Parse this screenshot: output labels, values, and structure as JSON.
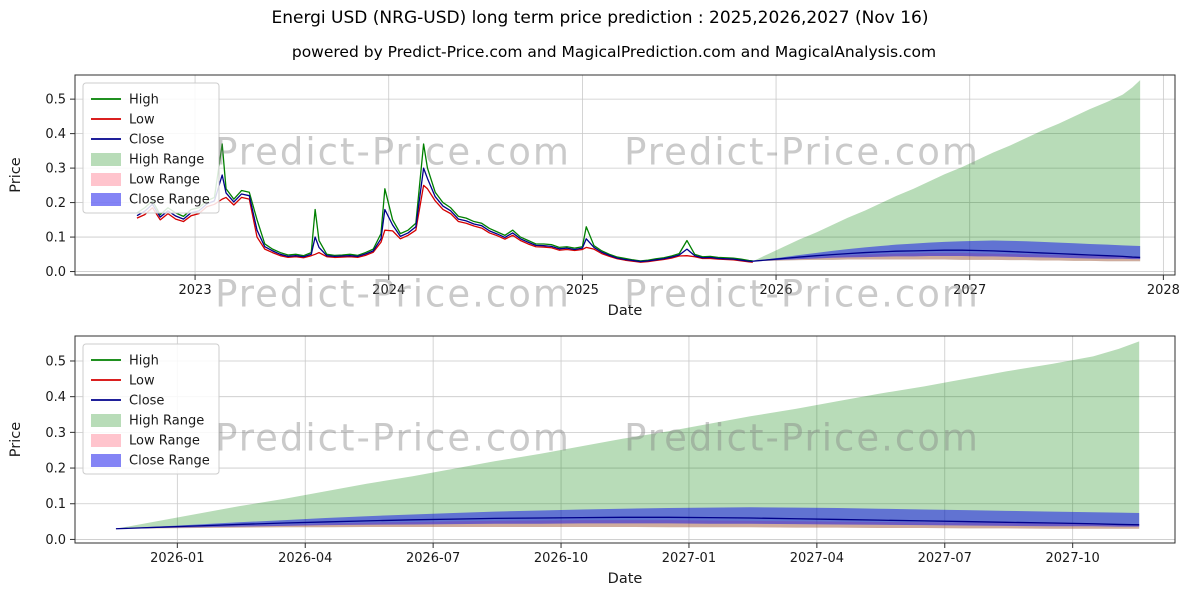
{
  "title": "Energi USD (NRG-USD) long term price prediction : 2025,2026,2027 (Nov 16)",
  "subtitle": "powered by Predict-Price.com and MagicalPrediction.com and MagicalAnalysis.com",
  "watermark": {
    "text": "Predict-Price.com"
  },
  "colors": {
    "high": "#008000",
    "low": "#d40000",
    "close": "#00008b",
    "high_range_fill": "rgba(0,128,0,0.28)",
    "low_range_fill": "rgba(255,70,100,0.32)",
    "close_range_fill": "rgba(10,10,235,0.5)",
    "grid": "#c9c9c9",
    "spine": "#2f2f2f",
    "text": "#1a1a1a"
  },
  "legend": {
    "entries": [
      {
        "label": "High",
        "swatch": "line",
        "color": "colors.high"
      },
      {
        "label": "Low",
        "swatch": "line",
        "color": "colors.low"
      },
      {
        "label": "Close",
        "swatch": "line",
        "color": "colors.close"
      },
      {
        "label": "High Range",
        "swatch": "patch",
        "color": "colors.high_range_fill"
      },
      {
        "label": "Low Range",
        "swatch": "patch",
        "color": "colors.low_range_fill"
      },
      {
        "label": "Close Range",
        "swatch": "patch",
        "color": "colors.close_range_fill"
      }
    ]
  },
  "chart_data": [
    {
      "type": "line",
      "title": "",
      "xlabel": "Date",
      "ylabel": "Price",
      "xlim": [
        2022.38,
        2028.06
      ],
      "ylim": [
        -0.01,
        0.57
      ],
      "grid": true,
      "legend_position": "upper-left",
      "xticks": {
        "values": [
          2023,
          2024,
          2025,
          2026,
          2027,
          2028
        ],
        "labels": [
          "2023",
          "2024",
          "2025",
          "2026",
          "2027",
          "2028"
        ]
      },
      "yticks": [
        0.0,
        0.1,
        0.2,
        0.3,
        0.4,
        0.5
      ],
      "history": {
        "x": [
          2022.7,
          2022.74,
          2022.78,
          2022.82,
          2022.86,
          2022.9,
          2022.94,
          2022.98,
          2023.02,
          2023.06,
          2023.1,
          2023.14,
          2023.16,
          2023.2,
          2023.24,
          2023.28,
          2023.32,
          2023.36,
          2023.4,
          2023.44,
          2023.48,
          2023.52,
          2023.56,
          2023.6,
          2023.62,
          2023.64,
          2023.68,
          2023.72,
          2023.76,
          2023.8,
          2023.84,
          2023.88,
          2023.92,
          2023.96,
          2023.98,
          2024.02,
          2024.06,
          2024.1,
          2024.14,
          2024.18,
          2024.2,
          2024.24,
          2024.28,
          2024.32,
          2024.36,
          2024.4,
          2024.44,
          2024.48,
          2024.52,
          2024.56,
          2024.6,
          2024.64,
          2024.68,
          2024.72,
          2024.76,
          2024.8,
          2024.84,
          2024.88,
          2024.92,
          2024.96,
          2025.0,
          2025.02,
          2025.06,
          2025.1,
          2025.14,
          2025.18,
          2025.22,
          2025.26,
          2025.3,
          2025.34,
          2025.38,
          2025.42,
          2025.46,
          2025.5,
          2025.54,
          2025.58,
          2025.62,
          2025.66,
          2025.7,
          2025.74,
          2025.78,
          2025.82,
          2025.86,
          2025.88
        ],
        "high": [
          0.17,
          0.185,
          0.205,
          0.165,
          0.185,
          0.17,
          0.16,
          0.18,
          0.185,
          0.205,
          0.215,
          0.37,
          0.24,
          0.21,
          0.235,
          0.23,
          0.15,
          0.08,
          0.065,
          0.055,
          0.048,
          0.05,
          0.046,
          0.055,
          0.18,
          0.09,
          0.05,
          0.047,
          0.048,
          0.05,
          0.047,
          0.055,
          0.065,
          0.11,
          0.24,
          0.15,
          0.11,
          0.12,
          0.14,
          0.37,
          0.3,
          0.23,
          0.2,
          0.185,
          0.16,
          0.155,
          0.145,
          0.14,
          0.125,
          0.115,
          0.105,
          0.12,
          0.1,
          0.09,
          0.08,
          0.08,
          0.078,
          0.07,
          0.072,
          0.068,
          0.072,
          0.13,
          0.075,
          0.06,
          0.05,
          0.042,
          0.038,
          0.034,
          0.031,
          0.033,
          0.037,
          0.04,
          0.045,
          0.052,
          0.09,
          0.05,
          0.043,
          0.044,
          0.041,
          0.04,
          0.039,
          0.036,
          0.032,
          0.031
        ],
        "low": [
          0.155,
          0.165,
          0.185,
          0.15,
          0.168,
          0.152,
          0.145,
          0.162,
          0.168,
          0.188,
          0.195,
          0.21,
          0.215,
          0.193,
          0.215,
          0.21,
          0.1,
          0.065,
          0.055,
          0.046,
          0.041,
          0.043,
          0.04,
          0.046,
          0.05,
          0.055,
          0.043,
          0.041,
          0.042,
          0.043,
          0.041,
          0.047,
          0.056,
          0.085,
          0.12,
          0.118,
          0.095,
          0.105,
          0.12,
          0.25,
          0.24,
          0.205,
          0.18,
          0.168,
          0.145,
          0.14,
          0.132,
          0.126,
          0.112,
          0.104,
          0.094,
          0.105,
          0.09,
          0.08,
          0.072,
          0.071,
          0.069,
          0.062,
          0.064,
          0.061,
          0.064,
          0.07,
          0.065,
          0.052,
          0.044,
          0.037,
          0.033,
          0.03,
          0.027,
          0.029,
          0.032,
          0.035,
          0.039,
          0.045,
          0.046,
          0.043,
          0.038,
          0.038,
          0.036,
          0.035,
          0.034,
          0.031,
          0.028,
          0.027
        ],
        "close": [
          0.162,
          0.175,
          0.195,
          0.158,
          0.176,
          0.161,
          0.152,
          0.171,
          0.176,
          0.196,
          0.205,
          0.28,
          0.228,
          0.202,
          0.225,
          0.22,
          0.12,
          0.072,
          0.06,
          0.05,
          0.044,
          0.046,
          0.043,
          0.05,
          0.1,
          0.07,
          0.046,
          0.044,
          0.045,
          0.046,
          0.044,
          0.051,
          0.06,
          0.095,
          0.18,
          0.135,
          0.102,
          0.112,
          0.13,
          0.3,
          0.27,
          0.217,
          0.19,
          0.176,
          0.152,
          0.147,
          0.138,
          0.133,
          0.118,
          0.109,
          0.099,
          0.112,
          0.095,
          0.085,
          0.076,
          0.075,
          0.073,
          0.066,
          0.068,
          0.064,
          0.068,
          0.095,
          0.07,
          0.056,
          0.047,
          0.039,
          0.035,
          0.032,
          0.029,
          0.031,
          0.034,
          0.037,
          0.042,
          0.048,
          0.065,
          0.046,
          0.04,
          0.041,
          0.038,
          0.037,
          0.036,
          0.033,
          0.03,
          0.029
        ]
      },
      "prediction": {
        "x": [
          2025.88,
          2025.96,
          2026.04,
          2026.12,
          2026.21,
          2026.29,
          2026.37,
          2026.46,
          2026.54,
          2026.62,
          2026.71,
          2026.79,
          2026.87,
          2026.96,
          2027.04,
          2027.12,
          2027.21,
          2027.29,
          2027.37,
          2027.46,
          2027.54,
          2027.62,
          2027.71,
          2027.79,
          2027.84,
          2027.88
        ],
        "close": [
          0.03,
          0.034,
          0.038,
          0.042,
          0.046,
          0.049,
          0.052,
          0.055,
          0.057,
          0.059,
          0.06,
          0.061,
          0.062,
          0.062,
          0.061,
          0.06,
          0.058,
          0.056,
          0.054,
          0.052,
          0.05,
          0.048,
          0.046,
          0.044,
          0.042,
          0.041
        ],
        "high_upper": [
          0.03,
          0.051,
          0.072,
          0.093,
          0.114,
          0.135,
          0.156,
          0.177,
          0.198,
          0.219,
          0.24,
          0.261,
          0.282,
          0.303,
          0.324,
          0.345,
          0.366,
          0.387,
          0.408,
          0.429,
          0.45,
          0.471,
          0.492,
          0.513,
          0.534,
          0.555
        ],
        "close_upper": [
          0.03,
          0.036,
          0.042,
          0.048,
          0.054,
          0.06,
          0.065,
          0.07,
          0.074,
          0.078,
          0.081,
          0.084,
          0.086,
          0.088,
          0.089,
          0.09,
          0.089,
          0.088,
          0.086,
          0.084,
          0.082,
          0.08,
          0.078,
          0.076,
          0.075,
          0.074
        ],
        "close_lower": [
          0.03,
          0.032,
          0.034,
          0.036,
          0.038,
          0.04,
          0.041,
          0.042,
          0.043,
          0.044,
          0.044,
          0.045,
          0.045,
          0.045,
          0.044,
          0.044,
          0.043,
          0.042,
          0.041,
          0.04,
          0.039,
          0.038,
          0.037,
          0.037,
          0.036,
          0.036
        ],
        "low_upper": [
          0.03,
          0.033,
          0.036,
          0.039,
          0.042,
          0.045,
          0.047,
          0.049,
          0.051,
          0.052,
          0.053,
          0.054,
          0.054,
          0.054,
          0.053,
          0.052,
          0.051,
          0.05,
          0.049,
          0.048,
          0.047,
          0.046,
          0.045,
          0.044,
          0.043,
          0.043
        ],
        "low_lower": [
          0.03,
          0.031,
          0.032,
          0.033,
          0.034,
          0.034,
          0.035,
          0.035,
          0.035,
          0.035,
          0.035,
          0.035,
          0.035,
          0.034,
          0.034,
          0.034,
          0.033,
          0.033,
          0.032,
          0.032,
          0.031,
          0.031,
          0.03,
          0.03,
          0.03,
          0.03
        ]
      },
      "areas": [
        {
          "x": "chart_data.0.prediction.x",
          "upper": "chart_data.0.prediction.high_upper",
          "lower": "chart_data.0.prediction.low_lower",
          "fill": "colors.high_range_fill",
          "name": "high-range-area"
        },
        {
          "x": "chart_data.0.prediction.x",
          "upper": "chart_data.0.prediction.low_upper",
          "lower": "chart_data.0.prediction.low_lower",
          "fill": "colors.low_range_fill",
          "name": "low-range-area"
        },
        {
          "x": "chart_data.0.prediction.x",
          "upper": "chart_data.0.prediction.close_upper",
          "lower": "chart_data.0.prediction.close_lower",
          "fill": "colors.close_range_fill",
          "name": "close-range-area"
        }
      ],
      "lines": [
        {
          "x": "chart_data.0.history.x",
          "y": "chart_data.0.history.high",
          "color": "colors.high",
          "name": "high-line"
        },
        {
          "x": "chart_data.0.history.x",
          "y": "chart_data.0.history.low",
          "color": "colors.low",
          "name": "low-line"
        },
        {
          "x": "chart_data.0.history.x",
          "y": "chart_data.0.history.close",
          "color": "colors.close",
          "name": "close-line"
        },
        {
          "x": "chart_data.0.prediction.x",
          "y": "chart_data.0.prediction.close",
          "color": "colors.close",
          "name": "close-prediction-line"
        }
      ]
    },
    {
      "type": "line",
      "title": "",
      "xlabel": "Date",
      "ylabel": "Price",
      "xlim": [
        2025.8,
        2027.95
      ],
      "ylim": [
        -0.01,
        0.57
      ],
      "grid": true,
      "legend_position": "upper-left",
      "xticks": {
        "values": [
          2026.0,
          2026.25,
          2026.5,
          2026.75,
          2027.0,
          2027.25,
          2027.5,
          2027.75
        ],
        "labels": [
          "2026-01",
          "2026-04",
          "2026-07",
          "2026-10",
          "2027-01",
          "2027-04",
          "2027-07",
          "2027-10"
        ]
      },
      "yticks": [
        0.0,
        0.1,
        0.2,
        0.3,
        0.4,
        0.5
      ],
      "areas": [
        {
          "x": "chart_data.0.prediction.x",
          "upper": "chart_data.0.prediction.high_upper",
          "lower": "chart_data.0.prediction.low_lower",
          "fill": "colors.high_range_fill",
          "name": "high-range-area"
        },
        {
          "x": "chart_data.0.prediction.x",
          "upper": "chart_data.0.prediction.low_upper",
          "lower": "chart_data.0.prediction.low_lower",
          "fill": "colors.low_range_fill",
          "name": "low-range-area"
        },
        {
          "x": "chart_data.0.prediction.x",
          "upper": "chart_data.0.prediction.close_upper",
          "lower": "chart_data.0.prediction.close_lower",
          "fill": "colors.close_range_fill",
          "name": "close-range-area"
        }
      ],
      "lines": [
        {
          "x": "chart_data.0.prediction.x",
          "y": "chart_data.0.prediction.close",
          "color": "colors.close",
          "name": "close-prediction-line"
        }
      ]
    }
  ]
}
